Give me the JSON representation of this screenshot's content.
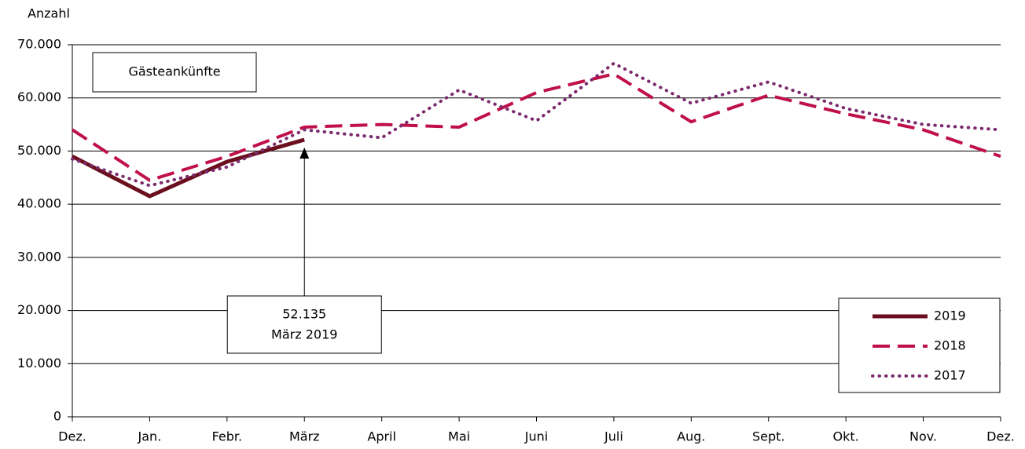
{
  "chart_data": {
    "type": "line",
    "title": "Gästeankünfte",
    "y_axis_label": "Anzahl",
    "annotation": [
      "52.135",
      "März 2019"
    ],
    "categories": [
      "Dez.",
      "Jan.",
      "Febr.",
      "März",
      "April",
      "Mai",
      "Juni",
      "Juli",
      "Aug.",
      "Sept.",
      "Okt.",
      "Nov.",
      "Dez."
    ],
    "series": [
      {
        "name": "2019",
        "color": "#6b0f1f",
        "style": "solid",
        "values": [
          49000,
          41500,
          48000,
          52135,
          null,
          null,
          null,
          null,
          null,
          null,
          null,
          null,
          null
        ]
      },
      {
        "name": "2018",
        "color": "#c0104a",
        "style": "dashed",
        "values": [
          54000,
          44500,
          49000,
          54500,
          55000,
          54500,
          61000,
          64500,
          55500,
          60500,
          57000,
          54000,
          49000
        ]
      },
      {
        "name": "2017",
        "color": "#7b2a6e",
        "style": "dotted",
        "values": [
          48500,
          43500,
          47000,
          54000,
          52500,
          61500,
          55700,
          66500,
          59000,
          63000,
          58000,
          55000,
          54000
        ]
      }
    ],
    "ylim": [
      0,
      70000
    ],
    "yticks": [
      0,
      {
        "value": 10000,
        "label": "10.000"
      },
      {
        "value": 20000,
        "label": "20.000"
      },
      {
        "value": 30000,
        "label": "30.000"
      },
      {
        "value": 40000,
        "label": "40.000"
      },
      {
        "value": 50000,
        "label": "50.000"
      },
      {
        "value": 60000,
        "label": "60.000"
      },
      {
        "value": 70000,
        "label": "70.000"
      }
    ],
    "grid": true,
    "legend": "bottom-right"
  }
}
